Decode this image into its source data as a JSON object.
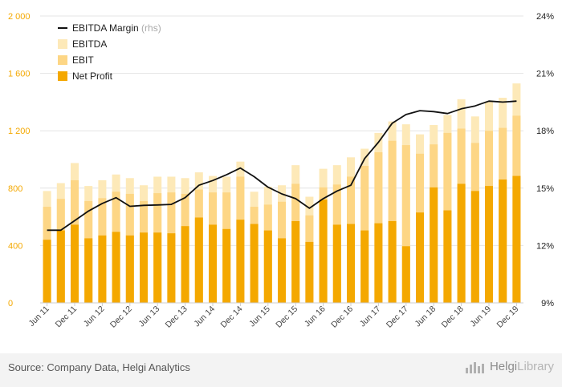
{
  "chart_data": {
    "type": "bar+line",
    "title": "",
    "categories": [
      "Jun 11",
      "Sep 11",
      "Dec 11",
      "Mar 12",
      "Jun 12",
      "Sep 12",
      "Dec 12",
      "Mar 13",
      "Jun 13",
      "Sep 13",
      "Dec 13",
      "Mar 14",
      "Jun 14",
      "Sep 14",
      "Dec 14",
      "Mar 15",
      "Jun 15",
      "Sep 15",
      "Dec 15",
      "Mar 16",
      "Jun 16",
      "Sep 16",
      "Dec 16",
      "Mar 17",
      "Jun 17",
      "Sep 17",
      "Dec 17",
      "Mar 18",
      "Jun 18",
      "Sep 18",
      "Dec 18",
      "Mar 19",
      "Jun 19",
      "Sep 19",
      "Dec 19"
    ],
    "x_tick_labels": [
      "Jun 11",
      "Dec 11",
      "Jun 12",
      "Dec 12",
      "Jun 13",
      "Dec 13",
      "Jun 14",
      "Dec 14",
      "Jun 15",
      "Dec 15",
      "Jun 16",
      "Dec 16",
      "Jun 17",
      "Dec 17",
      "Jun 18",
      "Dec 18",
      "Jun 19",
      "Dec 19"
    ],
    "series": [
      {
        "name": "EBITDA",
        "color": "#fde9b8",
        "values": [
          780,
          835,
          975,
          815,
          855,
          895,
          870,
          820,
          880,
          880,
          870,
          910,
          885,
          880,
          985,
          775,
          810,
          820,
          960,
          740,
          935,
          960,
          1015,
          1075,
          1185,
          1265,
          1245,
          1175,
          1240,
          1310,
          1420,
          1300,
          1405,
          1430,
          1530
        ]
      },
      {
        "name": "EBIT",
        "color": "#fdd685",
        "values": [
          670,
          725,
          855,
          710,
          730,
          775,
          760,
          710,
          765,
          770,
          760,
          790,
          770,
          770,
          880,
          670,
          685,
          705,
          830,
          610,
          805,
          825,
          880,
          955,
          1050,
          1130,
          1100,
          1040,
          1105,
          1185,
          1215,
          1115,
          1200,
          1220,
          1305
        ]
      },
      {
        "name": "Net Profit",
        "color": "#f4a800",
        "values": [
          440,
          505,
          545,
          450,
          470,
          495,
          470,
          490,
          490,
          485,
          535,
          595,
          545,
          515,
          580,
          550,
          505,
          450,
          570,
          425,
          720,
          545,
          550,
          505,
          555,
          570,
          395,
          630,
          805,
          645,
          830,
          780,
          815,
          860,
          885
        ]
      },
      {
        "name": "EBITDA Margin",
        "axis": "rhs",
        "color": "#111111",
        "values": [
          12.8,
          12.8,
          13.3,
          13.8,
          14.2,
          14.5,
          14.05,
          14.1,
          14.12,
          14.15,
          14.5,
          15.15,
          15.4,
          15.7,
          16.05,
          15.6,
          15.05,
          14.7,
          14.45,
          13.95,
          14.45,
          14.85,
          15.15,
          16.55,
          17.4,
          18.4,
          18.85,
          19.05,
          19.0,
          18.9,
          19.15,
          19.3,
          19.55,
          19.5,
          19.55
        ]
      }
    ],
    "legend": [
      {
        "label": "EBITDA Margin",
        "suffix": "(rhs)",
        "kind": "line"
      },
      {
        "label": "EBITDA",
        "kind": "box"
      },
      {
        "label": "EBIT",
        "kind": "box"
      },
      {
        "label": "Net Profit",
        "kind": "box"
      }
    ],
    "legend_position": "top-left",
    "y_left": {
      "min": 0,
      "max": 2000,
      "ticks": [
        0,
        400,
        800,
        1200,
        1600,
        2000
      ],
      "tick_labels": [
        "0",
        "400",
        "800",
        "1 200",
        "1 600",
        "2 000"
      ],
      "tick_color": "#f4a800"
    },
    "y_right": {
      "min": 9,
      "max": 24,
      "ticks": [
        9,
        12,
        15,
        18,
        21,
        24
      ],
      "tick_labels": [
        "9%",
        "12%",
        "15%",
        "18%",
        "21%",
        "24%"
      ]
    },
    "grid": true
  },
  "footer": {
    "source": "Source: Company Data, Helgi Analytics",
    "brand_a": "Helgi",
    "brand_b": "Library"
  }
}
